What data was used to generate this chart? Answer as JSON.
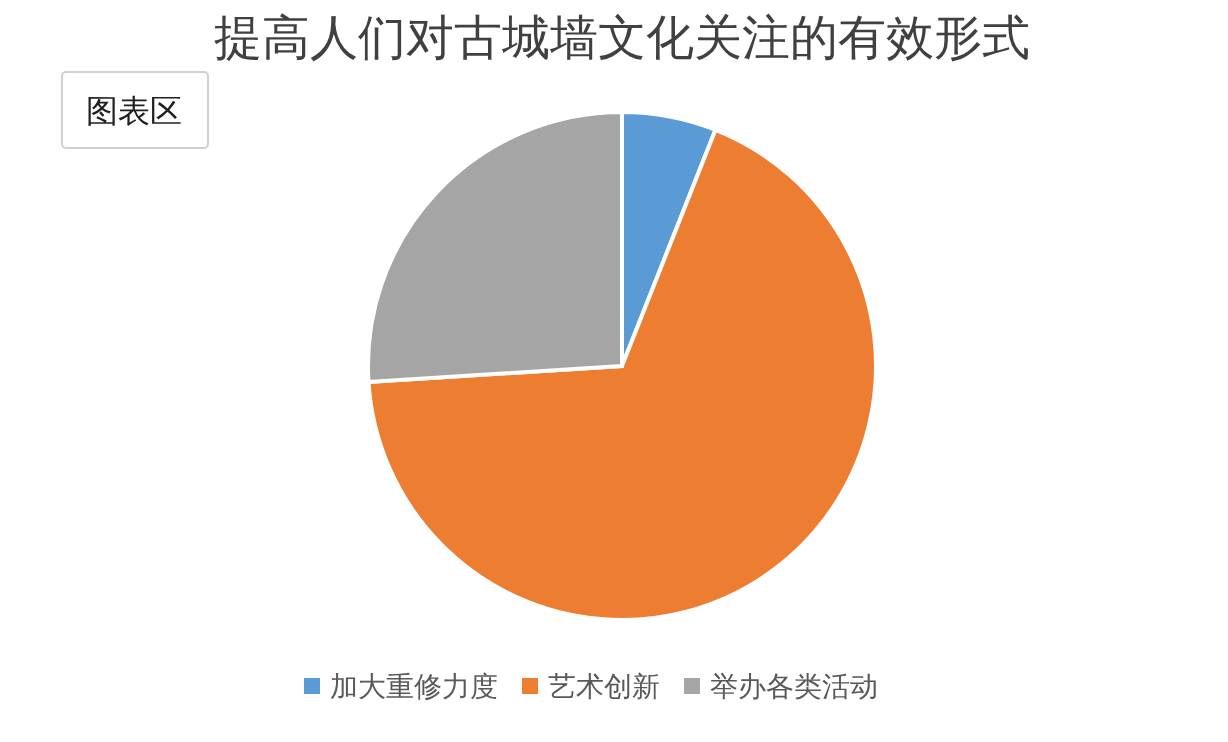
{
  "chart_data": {
    "type": "pie",
    "title": "提高人们对古城墙文化关注的有效形式",
    "categories": [
      "加大重修力度",
      "艺术创新",
      "举办各类活动"
    ],
    "values": [
      6,
      68,
      26
    ],
    "colors": [
      "#5b9bd5",
      "#ed7d31",
      "#a5a5a5"
    ],
    "legend": "bottom",
    "annotations": [
      "图表区"
    ]
  }
}
